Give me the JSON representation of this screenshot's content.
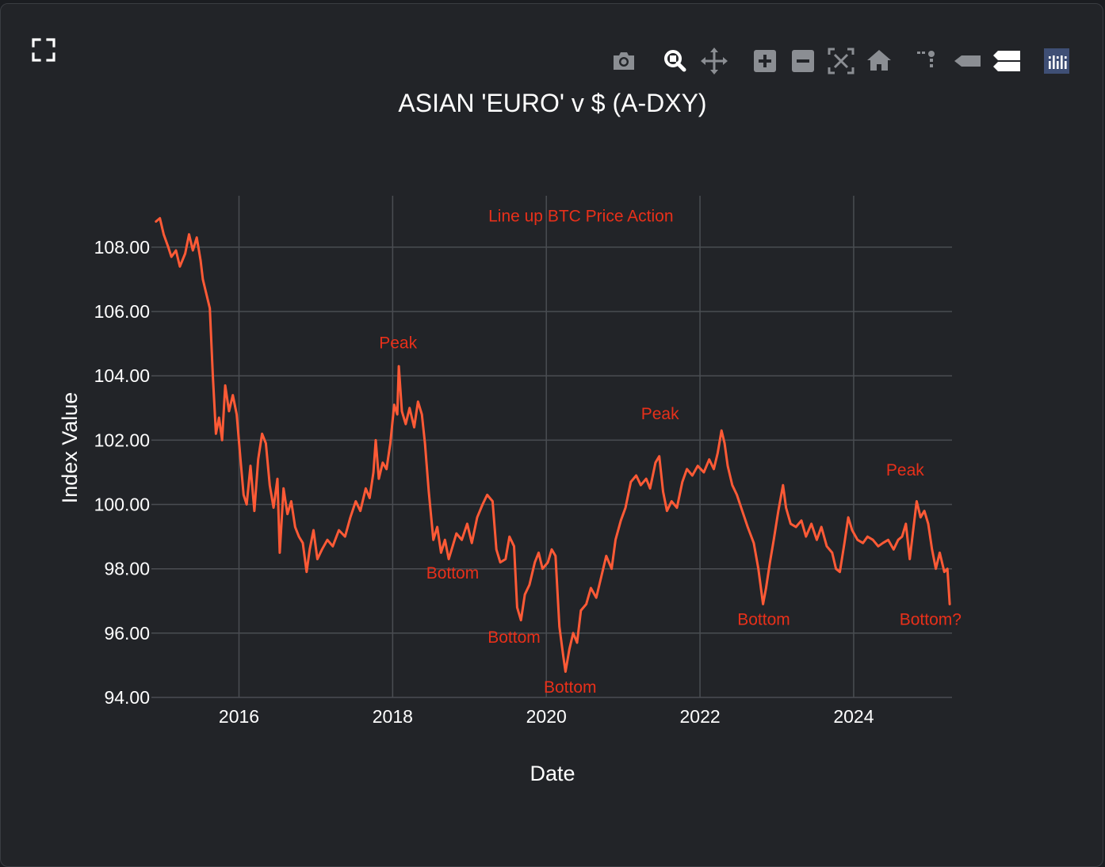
{
  "toolbar": {
    "expand_icon": "fullscreen-expand-icon",
    "buttons": [
      "camera-icon",
      "zoom-icon",
      "pan-icon",
      "zoom-in-icon",
      "zoom-out-icon",
      "autoscale-icon",
      "reset-axes-icon",
      "spike-lines-icon",
      "hover-closest-icon",
      "hover-compare-icon",
      "plotly-logo-icon"
    ]
  },
  "colors": {
    "background": "#222428",
    "line": "#ff5a36",
    "annotation": "#e8301a",
    "grid": "#4a4d52",
    "text": "#ffffff",
    "icon": "#8b8e93"
  },
  "chart_data": {
    "type": "line",
    "title": "ASIAN 'EURO' v $ (A-DXY)",
    "xlabel": "Date",
    "ylabel": "Index Value",
    "xlim": [
      2014.86,
      2025.28
    ],
    "ylim": [
      94,
      109.6
    ],
    "x_ticks": [
      2016,
      2018,
      2020,
      2022,
      2024
    ],
    "x_tick_labels": [
      "2016",
      "2018",
      "2020",
      "2022",
      "2024"
    ],
    "y_ticks": [
      94,
      96,
      98,
      100,
      102,
      104,
      106,
      108
    ],
    "y_tick_labels": [
      "94.00",
      "96.00",
      "98.00",
      "100.00",
      "102.00",
      "104.00",
      "106.00",
      "108.00"
    ],
    "grid": true,
    "series": [
      {
        "values": [
          [
            2014.92,
            108.8
          ],
          [
            2014.97,
            108.9
          ],
          [
            2015.02,
            108.4
          ],
          [
            2015.08,
            108.0
          ],
          [
            2015.12,
            107.7
          ],
          [
            2015.18,
            107.9
          ],
          [
            2015.23,
            107.4
          ],
          [
            2015.3,
            107.8
          ],
          [
            2015.35,
            108.4
          ],
          [
            2015.4,
            107.9
          ],
          [
            2015.45,
            108.3
          ],
          [
            2015.5,
            107.6
          ],
          [
            2015.53,
            107.0
          ],
          [
            2015.58,
            106.5
          ],
          [
            2015.62,
            106.1
          ],
          [
            2015.66,
            104.0
          ],
          [
            2015.7,
            102.2
          ],
          [
            2015.74,
            102.7
          ],
          [
            2015.78,
            102.0
          ],
          [
            2015.82,
            103.7
          ],
          [
            2015.87,
            102.9
          ],
          [
            2015.92,
            103.4
          ],
          [
            2015.97,
            102.8
          ],
          [
            2016.02,
            101.4
          ],
          [
            2016.06,
            100.3
          ],
          [
            2016.1,
            100.0
          ],
          [
            2016.15,
            101.2
          ],
          [
            2016.2,
            99.8
          ],
          [
            2016.25,
            101.4
          ],
          [
            2016.3,
            102.2
          ],
          [
            2016.35,
            101.9
          ],
          [
            2016.4,
            100.6
          ],
          [
            2016.45,
            99.9
          ],
          [
            2016.5,
            100.8
          ],
          [
            2016.53,
            98.5
          ],
          [
            2016.58,
            100.5
          ],
          [
            2016.63,
            99.7
          ],
          [
            2016.68,
            100.1
          ],
          [
            2016.73,
            99.3
          ],
          [
            2016.78,
            99.0
          ],
          [
            2016.83,
            98.8
          ],
          [
            2016.88,
            97.9
          ],
          [
            2016.92,
            98.6
          ],
          [
            2016.97,
            99.2
          ],
          [
            2017.02,
            98.3
          ],
          [
            2017.08,
            98.6
          ],
          [
            2017.15,
            98.9
          ],
          [
            2017.22,
            98.7
          ],
          [
            2017.3,
            99.2
          ],
          [
            2017.38,
            99.0
          ],
          [
            2017.45,
            99.6
          ],
          [
            2017.52,
            100.1
          ],
          [
            2017.58,
            99.8
          ],
          [
            2017.65,
            100.5
          ],
          [
            2017.7,
            100.2
          ],
          [
            2017.75,
            101.0
          ],
          [
            2017.78,
            102.0
          ],
          [
            2017.82,
            100.8
          ],
          [
            2017.87,
            101.3
          ],
          [
            2017.92,
            101.1
          ],
          [
            2017.97,
            101.9
          ],
          [
            2018.02,
            103.1
          ],
          [
            2018.06,
            102.8
          ],
          [
            2018.08,
            104.3
          ],
          [
            2018.12,
            102.9
          ],
          [
            2018.17,
            102.5
          ],
          [
            2018.22,
            103.0
          ],
          [
            2018.28,
            102.4
          ],
          [
            2018.33,
            103.2
          ],
          [
            2018.38,
            102.8
          ],
          [
            2018.42,
            101.9
          ],
          [
            2018.47,
            100.4
          ],
          [
            2018.53,
            98.9
          ],
          [
            2018.58,
            99.3
          ],
          [
            2018.63,
            98.5
          ],
          [
            2018.68,
            98.9
          ],
          [
            2018.73,
            98.3
          ],
          [
            2018.78,
            98.7
          ],
          [
            2018.83,
            99.1
          ],
          [
            2018.9,
            98.9
          ],
          [
            2018.97,
            99.4
          ],
          [
            2019.03,
            98.8
          ],
          [
            2019.1,
            99.6
          ],
          [
            2019.17,
            100.0
          ],
          [
            2019.23,
            100.3
          ],
          [
            2019.3,
            100.1
          ],
          [
            2019.35,
            98.6
          ],
          [
            2019.4,
            98.2
          ],
          [
            2019.47,
            98.3
          ],
          [
            2019.52,
            99.0
          ],
          [
            2019.58,
            98.7
          ],
          [
            2019.62,
            96.8
          ],
          [
            2019.67,
            96.4
          ],
          [
            2019.72,
            97.2
          ],
          [
            2019.78,
            97.5
          ],
          [
            2019.85,
            98.2
          ],
          [
            2019.9,
            98.5
          ],
          [
            2019.95,
            98.0
          ],
          [
            2020.02,
            98.2
          ],
          [
            2020.07,
            98.6
          ],
          [
            2020.12,
            98.4
          ],
          [
            2020.17,
            96.2
          ],
          [
            2020.22,
            95.3
          ],
          [
            2020.25,
            94.8
          ],
          [
            2020.3,
            95.5
          ],
          [
            2020.35,
            96.0
          ],
          [
            2020.4,
            95.7
          ],
          [
            2020.45,
            96.7
          ],
          [
            2020.52,
            96.9
          ],
          [
            2020.58,
            97.4
          ],
          [
            2020.65,
            97.1
          ],
          [
            2020.72,
            97.8
          ],
          [
            2020.78,
            98.4
          ],
          [
            2020.85,
            98.0
          ],
          [
            2020.9,
            98.9
          ],
          [
            2020.97,
            99.5
          ],
          [
            2021.03,
            99.9
          ],
          [
            2021.1,
            100.7
          ],
          [
            2021.17,
            100.9
          ],
          [
            2021.23,
            100.6
          ],
          [
            2021.3,
            100.8
          ],
          [
            2021.35,
            100.5
          ],
          [
            2021.42,
            101.3
          ],
          [
            2021.47,
            101.5
          ],
          [
            2021.52,
            100.4
          ],
          [
            2021.57,
            99.8
          ],
          [
            2021.63,
            100.1
          ],
          [
            2021.7,
            99.9
          ],
          [
            2021.77,
            100.7
          ],
          [
            2021.83,
            101.1
          ],
          [
            2021.9,
            100.9
          ],
          [
            2021.97,
            101.2
          ],
          [
            2022.05,
            101.0
          ],
          [
            2022.12,
            101.4
          ],
          [
            2022.18,
            101.1
          ],
          [
            2022.23,
            101.6
          ],
          [
            2022.28,
            102.3
          ],
          [
            2022.32,
            101.9
          ],
          [
            2022.36,
            101.2
          ],
          [
            2022.42,
            100.6
          ],
          [
            2022.48,
            100.3
          ],
          [
            2022.55,
            99.8
          ],
          [
            2022.62,
            99.3
          ],
          [
            2022.7,
            98.8
          ],
          [
            2022.76,
            98.0
          ],
          [
            2022.82,
            96.9
          ],
          [
            2022.86,
            97.4
          ],
          [
            2022.91,
            98.2
          ],
          [
            2022.96,
            98.9
          ],
          [
            2023.02,
            99.8
          ],
          [
            2023.08,
            100.6
          ],
          [
            2023.12,
            99.9
          ],
          [
            2023.18,
            99.4
          ],
          [
            2023.25,
            99.3
          ],
          [
            2023.32,
            99.5
          ],
          [
            2023.38,
            99.0
          ],
          [
            2023.45,
            99.4
          ],
          [
            2023.52,
            98.9
          ],
          [
            2023.58,
            99.3
          ],
          [
            2023.65,
            98.7
          ],
          [
            2023.72,
            98.5
          ],
          [
            2023.77,
            98.0
          ],
          [
            2023.82,
            97.9
          ],
          [
            2023.88,
            98.8
          ],
          [
            2023.93,
            99.6
          ],
          [
            2023.98,
            99.2
          ],
          [
            2024.05,
            98.9
          ],
          [
            2024.12,
            98.8
          ],
          [
            2024.18,
            99.0
          ],
          [
            2024.25,
            98.9
          ],
          [
            2024.32,
            98.7
          ],
          [
            2024.38,
            98.8
          ],
          [
            2024.45,
            98.9
          ],
          [
            2024.52,
            98.6
          ],
          [
            2024.58,
            98.9
          ],
          [
            2024.63,
            99.0
          ],
          [
            2024.68,
            99.4
          ],
          [
            2024.73,
            98.3
          ],
          [
            2024.78,
            99.3
          ],
          [
            2024.82,
            100.1
          ],
          [
            2024.87,
            99.6
          ],
          [
            2024.92,
            99.8
          ],
          [
            2024.97,
            99.4
          ],
          [
            2025.02,
            98.6
          ],
          [
            2025.07,
            98.0
          ],
          [
            2025.12,
            98.5
          ],
          [
            2025.15,
            98.2
          ],
          [
            2025.18,
            97.9
          ],
          [
            2025.22,
            98.0
          ],
          [
            2025.25,
            96.9
          ]
        ]
      }
    ],
    "annotations": [
      {
        "text": "Line up BTC Price Action",
        "x": 2020.45,
        "y": 108.8
      },
      {
        "text": "Peak",
        "x": 2018.07,
        "y": 104.85
      },
      {
        "text": "Bottom",
        "x": 2018.78,
        "y": 97.7
      },
      {
        "text": "Bottom",
        "x": 2019.58,
        "y": 95.7
      },
      {
        "text": "Bottom",
        "x": 2020.31,
        "y": 94.15
      },
      {
        "text": "Peak",
        "x": 2021.48,
        "y": 102.65
      },
      {
        "text": "Bottom",
        "x": 2022.83,
        "y": 96.25
      },
      {
        "text": "Peak",
        "x": 2024.67,
        "y": 100.9
      },
      {
        "text": "Bottom?",
        "x": 2025.0,
        "y": 96.25
      }
    ]
  }
}
